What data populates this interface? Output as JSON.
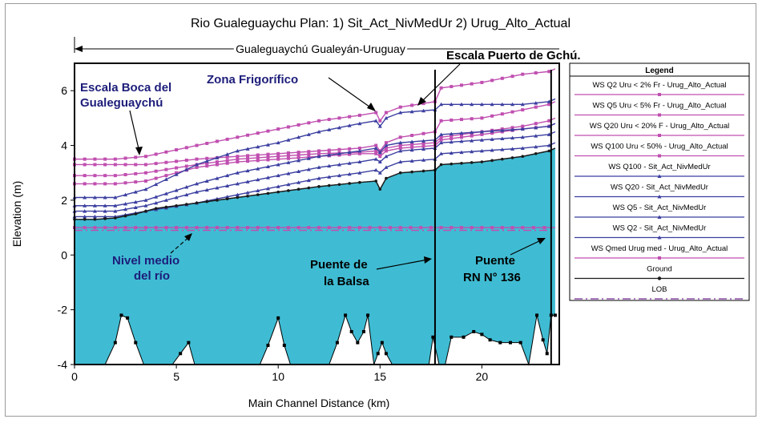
{
  "chart_data": {
    "type": "line",
    "title": "Rio Gualeguaychu      Plan:   1) Sit_Act_NivMedUr    2) Urug_Alto_Actual",
    "reach_label": "Gualeguaychú Gualeyán-Uruguay",
    "xlabel": "Main Channel Distance (km)",
    "ylabel": "Elevation (m)",
    "xlim": [
      0,
      23.8
    ],
    "ylim": [
      -4,
      7
    ],
    "xticks": [
      0,
      5,
      10,
      15,
      20
    ],
    "yticks": [
      -4,
      -2,
      0,
      2,
      4,
      6
    ],
    "grid": false,
    "legend_placement": "right",
    "legend_title": "Legend",
    "series": [
      {
        "name": "WS  Q2 Uru < 2% Fr - Urug_Alto_Actual",
        "color": "#c04fb0",
        "marker": "square",
        "x": [
          0,
          2,
          3.5,
          6,
          8,
          10,
          12,
          14,
          14.8,
          15,
          15.3,
          16,
          17.7,
          18,
          20,
          22,
          23.3,
          23.6
        ],
        "y": [
          3.5,
          3.5,
          3.6,
          4.0,
          4.3,
          4.6,
          4.9,
          5.1,
          5.2,
          4.9,
          5.2,
          5.4,
          5.6,
          6.1,
          6.3,
          6.6,
          6.7,
          6.8
        ]
      },
      {
        "name": "WS  Q5 Uru < 5% Fr - Urug_Alto_Actual",
        "color": "#c04fb0",
        "marker": "square",
        "x": [
          0,
          2,
          3.5,
          6,
          8,
          10,
          12,
          14,
          14.8,
          15,
          15.3,
          16,
          17.7,
          18,
          20,
          22,
          23.3,
          23.6
        ],
        "y": [
          3.3,
          3.3,
          3.3,
          3.5,
          3.6,
          3.7,
          3.8,
          3.9,
          4.0,
          3.8,
          4.1,
          4.3,
          4.5,
          4.9,
          5.0,
          5.3,
          5.5,
          5.6
        ]
      },
      {
        "name": "WS  Q20 Uru < 20% F - Urug_Alto_Actual",
        "color": "#c04fb0",
        "marker": "square",
        "x": [
          0,
          2,
          3.5,
          6,
          8,
          10,
          12,
          14,
          14.8,
          15,
          15.3,
          16,
          17.7,
          18,
          20,
          22,
          23.3,
          23.6
        ],
        "y": [
          2.9,
          2.9,
          3.0,
          3.3,
          3.5,
          3.6,
          3.7,
          3.75,
          3.8,
          3.7,
          3.9,
          4.0,
          4.1,
          4.3,
          4.5,
          4.7,
          4.9,
          5.0
        ]
      },
      {
        "name": "WS  Q100 Uru < 50% - Urug_Alto_Actual",
        "color": "#c04fb0",
        "marker": "square",
        "x": [
          0,
          2,
          3.5,
          6,
          8,
          10,
          12,
          14,
          14.8,
          15,
          15.3,
          16,
          17.7,
          18,
          20,
          22,
          23.3,
          23.6
        ],
        "y": [
          2.6,
          2.6,
          2.7,
          3.2,
          3.4,
          3.5,
          3.6,
          3.7,
          3.7,
          3.6,
          3.8,
          3.9,
          4.0,
          4.2,
          4.4,
          4.6,
          4.7,
          4.8
        ]
      },
      {
        "name": "WS  Q100 - Sit_Act_NivMedUr",
        "color": "#3b3fa0",
        "marker": "triangle",
        "x": [
          0,
          2,
          3.5,
          6,
          8,
          10,
          12,
          14,
          14.8,
          15,
          15.3,
          16,
          17.7,
          18,
          20,
          22,
          23.3,
          23.6
        ],
        "y": [
          2.1,
          2.1,
          2.4,
          3.3,
          3.8,
          4.1,
          4.5,
          4.8,
          4.9,
          4.7,
          5.0,
          5.2,
          5.3,
          5.5,
          5.5,
          5.5,
          5.6,
          5.7
        ]
      },
      {
        "name": "WS  Q20 - Sit_Act_NivMedUr",
        "color": "#3b3fa0",
        "marker": "triangle",
        "x": [
          0,
          2,
          3.5,
          6,
          8,
          10,
          12,
          14,
          14.8,
          15,
          15.3,
          16,
          17.7,
          18,
          20,
          22,
          23.3,
          23.6
        ],
        "y": [
          1.8,
          1.8,
          2.0,
          2.6,
          3.0,
          3.3,
          3.6,
          3.8,
          3.9,
          3.75,
          4.0,
          4.1,
          4.2,
          4.4,
          4.5,
          4.6,
          4.7,
          4.8
        ]
      },
      {
        "name": "WS  Q5 - Sit_Act_NivMedUr",
        "color": "#3b3fa0",
        "marker": "triangle",
        "x": [
          0,
          2,
          3.5,
          6,
          8,
          10,
          12,
          14,
          14.8,
          15,
          15.3,
          16,
          17.7,
          18,
          20,
          22,
          23.3,
          23.6
        ],
        "y": [
          1.6,
          1.6,
          1.8,
          2.3,
          2.6,
          2.9,
          3.2,
          3.4,
          3.5,
          3.4,
          3.6,
          3.8,
          3.9,
          4.1,
          4.2,
          4.3,
          4.4,
          4.5
        ]
      },
      {
        "name": "WS  Q2 - Sit_Act_NivMedUr",
        "color": "#3b3fa0",
        "marker": "triangle",
        "x": [
          0,
          2,
          3.5,
          6,
          8,
          10,
          12,
          14,
          14.8,
          15,
          15.3,
          16,
          17.7,
          18,
          20,
          22,
          23.3,
          23.6
        ],
        "y": [
          1.4,
          1.4,
          1.6,
          1.9,
          2.2,
          2.5,
          2.8,
          3.0,
          3.1,
          3.0,
          3.2,
          3.4,
          3.5,
          3.7,
          3.8,
          3.9,
          4.0,
          4.1
        ]
      },
      {
        "name": "WS  Qmed Urug med - Urug_Alto_Actual",
        "color": "#c04fb0",
        "marker": "square",
        "x": [
          0,
          2,
          4,
          6,
          8,
          10,
          12,
          14,
          16,
          18,
          20,
          22,
          23.6
        ],
        "y": [
          1.0,
          1.0,
          1.0,
          1.0,
          1.0,
          1.0,
          1.0,
          1.0,
          1.0,
          1.0,
          1.0,
          1.0,
          1.0
        ]
      },
      {
        "name": "Ground",
        "color": "#1a1a1a",
        "marker": "circle",
        "x": [
          0,
          1,
          2,
          3,
          4,
          6,
          8,
          10,
          12,
          14,
          14.8,
          15,
          15.3,
          16,
          17.7,
          18,
          20,
          22,
          23.3,
          23.6
        ],
        "y": [
          1.3,
          1.3,
          1.35,
          1.5,
          1.7,
          1.9,
          2.1,
          2.3,
          2.5,
          2.65,
          2.7,
          2.4,
          2.8,
          3.0,
          3.1,
          3.3,
          3.4,
          3.6,
          3.8,
          3.9
        ]
      },
      {
        "name": "LOB",
        "color": "#c04fb0",
        "marker": "dashdot",
        "x": [
          0,
          23.6
        ],
        "y": [
          0.9,
          0.9
        ]
      }
    ],
    "channel_bottom": {
      "x": [
        0,
        1.5,
        2.0,
        2.3,
        2.6,
        3.0,
        3.4,
        4.8,
        5.2,
        5.6,
        5.9,
        6.3,
        9.1,
        9.5,
        10.0,
        10.3,
        10.6,
        12.5,
        12.9,
        13.3,
        13.6,
        13.9,
        14.2,
        14.4,
        14.7,
        14.9,
        15.1,
        15.3,
        15.6,
        16.2,
        17.4,
        17.6,
        17.9,
        18.2,
        18.5,
        19.1,
        19.6,
        20.0,
        20.4,
        20.9,
        21.4,
        21.9,
        22.3,
        22.7,
        23.0,
        23.2,
        23.4,
        23.6
      ],
      "y": [
        -4,
        -4,
        -3.2,
        -2.2,
        -2.3,
        -3.2,
        -4,
        -4,
        -3.6,
        -3.2,
        -4,
        -4,
        -4,
        -3.3,
        -2.3,
        -3.3,
        -4,
        -4,
        -3.2,
        -2.2,
        -2.8,
        -3.2,
        -2.8,
        -2.2,
        -4,
        -3.6,
        -3.2,
        -3.6,
        -4,
        -4,
        -4,
        -3.0,
        -4,
        -4,
        -3.0,
        -3.0,
        -2.8,
        -2.9,
        -3.1,
        -3.2,
        -3.2,
        -3.2,
        -4,
        -2.2,
        -3.1,
        -3.6,
        -2.2,
        -2.2
      ]
    },
    "ground_fill_color": "#3fbcd3",
    "bridges": [
      {
        "x": 17.7
      },
      {
        "x": 23.4
      }
    ],
    "annotations": [
      {
        "text": "Escala Boca del",
        "bold": true
      },
      {
        "text": "Gualeguaychú",
        "bold": true
      },
      {
        "text": "Zona Frigorífico",
        "bold": true
      },
      {
        "text": "Escala Puerto de Gchú.",
        "bold": true
      },
      {
        "text": "Nivel medio",
        "bold": true
      },
      {
        "text": "del río",
        "bold": true
      },
      {
        "text": "Puente de",
        "bold": true
      },
      {
        "text": "la Balsa",
        "bold": true
      },
      {
        "text": "Puente",
        "bold": true
      },
      {
        "text": "RN N° 136",
        "bold": true
      }
    ],
    "legend": [
      {
        "label": "WS  Q2 Uru < 2% Fr - Urug_Alto_Actual",
        "color": "#c04fb0",
        "style": "solid-square"
      },
      {
        "label": "WS  Q5 Uru < 5% Fr - Urug_Alto_Actual",
        "color": "#c04fb0",
        "style": "solid-square"
      },
      {
        "label": "WS  Q20 Uru < 20% F - Urug_Alto_Actual",
        "color": "#c04fb0",
        "style": "solid-square"
      },
      {
        "label": "WS  Q100 Uru < 50% - Urug_Alto_Actual",
        "color": "#c04fb0",
        "style": "solid-square"
      },
      {
        "label": "WS  Q100 - Sit_Act_NivMedUr",
        "color": "#3b3fa0",
        "style": "solid-triangle"
      },
      {
        "label": "WS  Q20 - Sit_Act_NivMedUr",
        "color": "#3b3fa0",
        "style": "solid-triangle"
      },
      {
        "label": "WS  Q5 - Sit_Act_NivMedUr",
        "color": "#3b3fa0",
        "style": "solid-triangle"
      },
      {
        "label": "WS  Q2 - Sit_Act_NivMedUr",
        "color": "#3b3fa0",
        "style": "solid-triangle"
      },
      {
        "label": "WS  Qmed Urug med - Urug_Alto_Actual",
        "color": "#c04fb0",
        "style": "solid-square"
      },
      {
        "label": "Ground",
        "color": "#1a1a1a",
        "style": "solid-circle"
      },
      {
        "label": "LOB",
        "color": "#7a2f9a",
        "style": "dashdot"
      }
    ]
  }
}
